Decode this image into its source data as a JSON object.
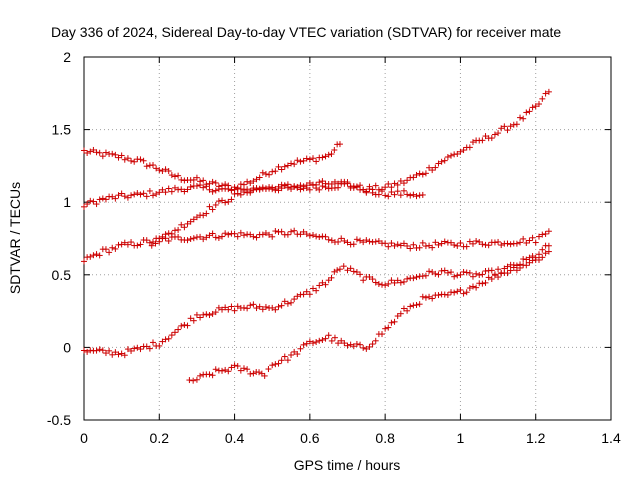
{
  "chart_data": {
    "type": "scatter",
    "title": "Day 336 of 2024, Sidereal Day-to-day VTEC variation (SDTVAR) for receiver mate",
    "xlabel": "GPS time / hours",
    "ylabel": "SDTVAR / TECUs",
    "xlim": [
      0,
      1.4
    ],
    "ylim": [
      -0.5,
      2
    ],
    "x_ticks": [
      "0",
      "0.2",
      "0.4",
      "0.6",
      "0.8",
      "1",
      "1.2",
      "1.4"
    ],
    "y_ticks": [
      "-0.5",
      "0",
      "0.5",
      "1",
      "1.5",
      "2"
    ],
    "grid": true,
    "marker": "+",
    "color": "#cc0000",
    "series": [
      {
        "name": "trace-1",
        "points": [
          [
            0,
            1.35
          ],
          [
            0.05,
            1.33
          ],
          [
            0.1,
            1.31
          ],
          [
            0.15,
            1.28
          ],
          [
            0.2,
            1.23
          ],
          [
            0.25,
            1.17
          ],
          [
            0.3,
            1.15
          ],
          [
            0.35,
            1.12
          ],
          [
            0.4,
            1.1
          ],
          [
            0.45,
            1.15
          ],
          [
            0.5,
            1.22
          ],
          [
            0.55,
            1.27
          ],
          [
            0.6,
            1.29
          ],
          [
            0.65,
            1.32
          ],
          [
            0.68,
            1.4
          ]
        ]
      },
      {
        "name": "trace-2",
        "points": [
          [
            0,
            0.98
          ],
          [
            0.05,
            1.02
          ],
          [
            0.1,
            1.04
          ],
          [
            0.15,
            1.05
          ],
          [
            0.2,
            1.07
          ],
          [
            0.25,
            1.09
          ],
          [
            0.3,
            1.1
          ],
          [
            0.35,
            1.09
          ],
          [
            0.4,
            1.08
          ],
          [
            0.45,
            1.09
          ],
          [
            0.5,
            1.1
          ],
          [
            0.55,
            1.09
          ],
          [
            0.6,
            1.1
          ],
          [
            0.65,
            1.11
          ],
          [
            0.7,
            1.12
          ],
          [
            0.75,
            1.09
          ],
          [
            0.8,
            1.1
          ],
          [
            0.85,
            1.14
          ],
          [
            0.9,
            1.2
          ],
          [
            0.95,
            1.28
          ],
          [
            1.0,
            1.35
          ],
          [
            1.05,
            1.42
          ],
          [
            1.1,
            1.48
          ],
          [
            1.15,
            1.55
          ],
          [
            1.2,
            1.65
          ],
          [
            1.235,
            1.76
          ]
        ]
      },
      {
        "name": "trace-3",
        "points": [
          [
            0,
            0.6
          ],
          [
            0.05,
            0.66
          ],
          [
            0.1,
            0.7
          ],
          [
            0.15,
            0.72
          ],
          [
            0.2,
            0.74
          ],
          [
            0.25,
            0.75
          ],
          [
            0.3,
            0.76
          ],
          [
            0.35,
            0.77
          ],
          [
            0.4,
            0.78
          ],
          [
            0.45,
            0.77
          ],
          [
            0.5,
            0.78
          ],
          [
            0.55,
            0.79
          ],
          [
            0.6,
            0.77
          ],
          [
            0.65,
            0.75
          ],
          [
            0.7,
            0.73
          ],
          [
            0.75,
            0.72
          ],
          [
            0.8,
            0.71
          ],
          [
            0.85,
            0.7
          ],
          [
            0.9,
            0.7
          ],
          [
            0.95,
            0.71
          ],
          [
            1.0,
            0.71
          ],
          [
            1.05,
            0.72
          ],
          [
            1.1,
            0.72
          ],
          [
            1.15,
            0.73
          ],
          [
            1.2,
            0.74
          ],
          [
            1.235,
            0.8
          ]
        ]
      },
      {
        "name": "trace-4",
        "points": [
          [
            0.18,
            0.72
          ],
          [
            0.2,
            0.74
          ],
          [
            0.25,
            0.82
          ],
          [
            0.3,
            0.9
          ],
          [
            0.35,
            0.98
          ],
          [
            0.4,
            1.04
          ],
          [
            0.45,
            1.09
          ],
          [
            0.5,
            1.1
          ],
          [
            0.55,
            1.11
          ],
          [
            0.6,
            1.12
          ],
          [
            0.65,
            1.13
          ],
          [
            0.7,
            1.12
          ],
          [
            0.75,
            1.08
          ],
          [
            0.8,
            1.06
          ],
          [
            0.85,
            1.06
          ],
          [
            0.9,
            1.05
          ]
        ]
      },
      {
        "name": "trace-5",
        "points": [
          [
            0,
            -0.03
          ],
          [
            0.05,
            -0.03
          ],
          [
            0.1,
            -0.04
          ],
          [
            0.15,
            -0.01
          ],
          [
            0.2,
            0.03
          ],
          [
            0.25,
            0.12
          ],
          [
            0.3,
            0.22
          ],
          [
            0.35,
            0.25
          ],
          [
            0.4,
            0.27
          ],
          [
            0.45,
            0.28
          ],
          [
            0.5,
            0.27
          ],
          [
            0.55,
            0.32
          ],
          [
            0.6,
            0.38
          ],
          [
            0.65,
            0.46
          ],
          [
            0.68,
            0.55
          ],
          [
            0.7,
            0.54
          ],
          [
            0.75,
            0.47
          ],
          [
            0.8,
            0.44
          ],
          [
            0.85,
            0.46
          ],
          [
            0.9,
            0.5
          ],
          [
            0.95,
            0.52
          ],
          [
            1.0,
            0.5
          ],
          [
            1.05,
            0.5
          ],
          [
            1.1,
            0.52
          ],
          [
            1.15,
            0.57
          ],
          [
            1.2,
            0.63
          ],
          [
            1.235,
            0.7
          ]
        ]
      },
      {
        "name": "trace-6",
        "points": [
          [
            0.28,
            -0.23
          ],
          [
            0.3,
            -0.22
          ],
          [
            0.35,
            -0.17
          ],
          [
            0.4,
            -0.14
          ],
          [
            0.45,
            -0.17
          ],
          [
            0.48,
            -0.18
          ],
          [
            0.5,
            -0.12
          ],
          [
            0.55,
            -0.06
          ],
          [
            0.6,
            0.03
          ],
          [
            0.65,
            0.07
          ],
          [
            0.7,
            0.01
          ],
          [
            0.75,
            0.0
          ],
          [
            0.8,
            0.12
          ],
          [
            0.85,
            0.25
          ],
          [
            0.9,
            0.33
          ],
          [
            0.95,
            0.35
          ],
          [
            1.0,
            0.38
          ],
          [
            1.05,
            0.44
          ],
          [
            1.1,
            0.5
          ],
          [
            1.15,
            0.55
          ],
          [
            1.2,
            0.6
          ],
          [
            1.235,
            0.66
          ]
        ]
      }
    ]
  }
}
